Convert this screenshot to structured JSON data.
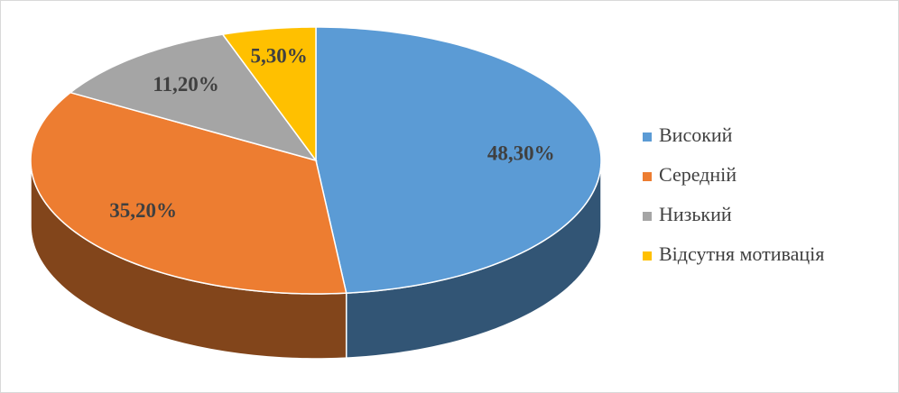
{
  "chart_data": {
    "type": "pie3d",
    "categories": [
      "Високий",
      "Середній",
      "Низький",
      "Відсутня мотивація"
    ],
    "values": [
      48.3,
      35.2,
      11.2,
      5.3
    ],
    "value_labels": [
      "48,30%",
      "35,20%",
      "11,20%",
      "5,30%"
    ],
    "colors": [
      "#5b9bd5",
      "#ed7d31",
      "#a5a5a5",
      "#ffc000"
    ],
    "legend": "right"
  }
}
